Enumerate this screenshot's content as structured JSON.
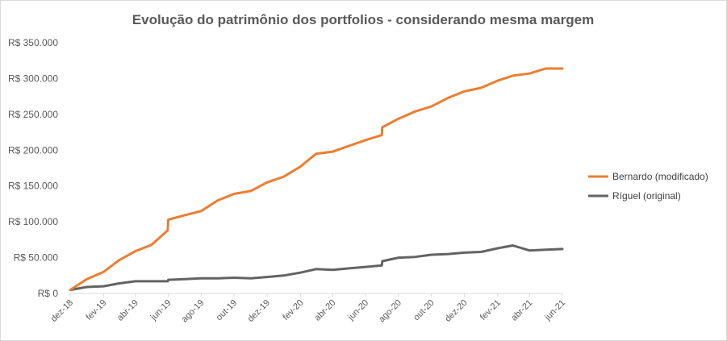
{
  "chart_data": {
    "type": "line",
    "title": "Evolução do patrimônio dos portfolios - considerando mesma margem",
    "xlabel": "",
    "ylabel": "",
    "ylim": [
      0,
      350000
    ],
    "yticks": [
      0,
      50000,
      100000,
      150000,
      200000,
      250000,
      300000,
      350000
    ],
    "ytick_labels": [
      "R$ 0",
      "R$ 50.000",
      "R$ 100.000",
      "R$ 150.000",
      "R$ 200.000",
      "R$ 250.000",
      "R$ 300.000",
      "R$ 350.000"
    ],
    "x_range": [
      "2018-12-01",
      "2021-06-01"
    ],
    "x_tick_dates": [
      "2018-12-01",
      "2019-02-01",
      "2019-04-01",
      "2019-06-01",
      "2019-08-01",
      "2019-10-01",
      "2019-12-01",
      "2020-02-01",
      "2020-04-01",
      "2020-06-01",
      "2020-08-01",
      "2020-10-01",
      "2020-12-01",
      "2021-02-01",
      "2021-04-01",
      "2021-06-01"
    ],
    "x_tick_labels": [
      "dez-18",
      "fev-19",
      "abr-19",
      "jun-19",
      "ago-19",
      "out-19",
      "dez-19",
      "fev-20",
      "abr-20",
      "jun-20",
      "ago-20",
      "out-20",
      "dez-20",
      "fev-21",
      "abr-21",
      "jun-21"
    ],
    "grid": false,
    "legend_position": "right",
    "series": [
      {
        "name": "Bernardo (modificado)",
        "color": "#ED7D31",
        "points": [
          [
            "2018-12-01",
            5000
          ],
          [
            "2019-01-01",
            20000
          ],
          [
            "2019-02-01",
            30000
          ],
          [
            "2019-03-01",
            46000
          ],
          [
            "2019-04-01",
            59000
          ],
          [
            "2019-05-01",
            68000
          ],
          [
            "2019-05-31",
            88000
          ],
          [
            "2019-06-01",
            103000
          ],
          [
            "2019-07-01",
            109000
          ],
          [
            "2019-08-01",
            115000
          ],
          [
            "2019-09-01",
            130000
          ],
          [
            "2019-10-01",
            139000
          ],
          [
            "2019-11-01",
            143000
          ],
          [
            "2019-12-01",
            155000
          ],
          [
            "2020-01-01",
            163000
          ],
          [
            "2020-02-01",
            177000
          ],
          [
            "2020-03-01",
            195000
          ],
          [
            "2020-04-01",
            198000
          ],
          [
            "2020-05-01",
            206000
          ],
          [
            "2020-06-01",
            214000
          ],
          [
            "2020-07-01",
            221000
          ],
          [
            "2020-07-02",
            232000
          ],
          [
            "2020-08-01",
            244000
          ],
          [
            "2020-09-01",
            254000
          ],
          [
            "2020-10-01",
            261000
          ],
          [
            "2020-11-01",
            273000
          ],
          [
            "2020-12-01",
            282000
          ],
          [
            "2021-01-01",
            287000
          ],
          [
            "2021-02-01",
            297000
          ],
          [
            "2021-03-01",
            304000
          ],
          [
            "2021-04-01",
            307000
          ],
          [
            "2021-05-01",
            314000
          ],
          [
            "2021-06-01",
            314000
          ]
        ]
      },
      {
        "name": "Ríguel (original)",
        "color": "#636363",
        "points": [
          [
            "2018-12-01",
            5000
          ],
          [
            "2019-01-01",
            9000
          ],
          [
            "2019-02-01",
            10000
          ],
          [
            "2019-03-01",
            14000
          ],
          [
            "2019-04-01",
            17000
          ],
          [
            "2019-05-01",
            17000
          ],
          [
            "2019-05-31",
            17000
          ],
          [
            "2019-06-01",
            19000
          ],
          [
            "2019-07-01",
            20000
          ],
          [
            "2019-08-01",
            21000
          ],
          [
            "2019-09-01",
            21000
          ],
          [
            "2019-10-01",
            22000
          ],
          [
            "2019-11-01",
            21000
          ],
          [
            "2019-12-01",
            23000
          ],
          [
            "2020-01-01",
            25000
          ],
          [
            "2020-02-01",
            29000
          ],
          [
            "2020-03-01",
            34000
          ],
          [
            "2020-04-01",
            33000
          ],
          [
            "2020-05-01",
            35000
          ],
          [
            "2020-06-01",
            37000
          ],
          [
            "2020-07-01",
            39000
          ],
          [
            "2020-07-02",
            45000
          ],
          [
            "2020-08-01",
            50000
          ],
          [
            "2020-09-01",
            51000
          ],
          [
            "2020-10-01",
            54000
          ],
          [
            "2020-11-01",
            55000
          ],
          [
            "2020-12-01",
            57000
          ],
          [
            "2021-01-01",
            58000
          ],
          [
            "2021-02-01",
            63000
          ],
          [
            "2021-03-01",
            67000
          ],
          [
            "2021-04-01",
            60000
          ],
          [
            "2021-05-01",
            61000
          ],
          [
            "2021-06-01",
            62000
          ]
        ]
      }
    ]
  }
}
